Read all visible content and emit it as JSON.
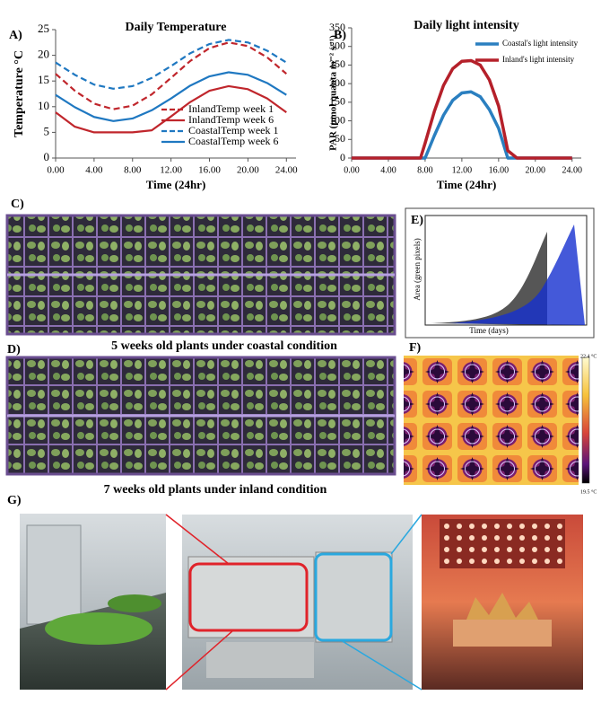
{
  "chart_data": [
    {
      "type": "line",
      "panel": "A)",
      "title": "Daily Temperature",
      "x_label": "Time (24hr)",
      "y_label": "Temperature °C",
      "x": [
        0,
        2,
        4,
        6,
        8,
        10,
        12,
        14,
        16,
        18,
        20,
        22,
        24
      ],
      "series": [
        {
          "name": "InlandTemp week 1",
          "color": "#c0262c",
          "line_style": "dashed",
          "values": [
            16.4,
            13.1,
            10.6,
            9.5,
            10.2,
            12.4,
            15.6,
            18.9,
            21.4,
            22.5,
            21.8,
            19.6,
            16.4
          ]
        },
        {
          "name": "InlandTemp week 6",
          "color": "#c0262c",
          "line_style": "solid",
          "values": [
            8.9,
            6.1,
            5,
            5,
            5,
            5.4,
            8.1,
            10.9,
            13.1,
            14,
            13.4,
            11.6,
            8.9
          ]
        },
        {
          "name": "CoastalTemp week 1",
          "color": "#1f78c1",
          "line_style": "dashed",
          "values": [
            18.6,
            16.2,
            14.3,
            13.5,
            14,
            15.6,
            17.9,
            20.4,
            22.2,
            23,
            22.5,
            20.9,
            18.6
          ]
        },
        {
          "name": "CoastalTemp week 6",
          "color": "#1f78c1",
          "line_style": "solid",
          "values": [
            12.3,
            9.9,
            8,
            7.2,
            7.7,
            9.3,
            11.6,
            14.1,
            15.9,
            16.7,
            16.2,
            14.6,
            12.3
          ]
        }
      ],
      "xlim": [
        0,
        25
      ],
      "ylim": [
        0,
        25
      ],
      "xticks": [
        {
          "value": 0,
          "label": "0.00"
        },
        {
          "value": 4,
          "label": "4.00"
        },
        {
          "value": 8,
          "label": "8.00"
        },
        {
          "value": 12,
          "label": "12.00"
        },
        {
          "value": 16,
          "label": "16.00"
        },
        {
          "value": 20,
          "label": "20.00"
        },
        {
          "value": 24,
          "label": "24.00"
        }
      ],
      "yticks": [
        0,
        5,
        10,
        15,
        20,
        25
      ],
      "legend": "lower right"
    },
    {
      "type": "line",
      "panel": "B)",
      "title": "Daily light intensity",
      "x_label": "Time (24hr)",
      "y_label": "PAR (μmol quanta m⁻² s⁻¹)",
      "x": [
        0,
        7.5,
        8,
        9,
        10,
        11,
        12,
        13,
        14,
        15,
        16,
        17,
        18,
        24
      ],
      "series": [
        {
          "name": "Coastal's light intensity",
          "color": "#2a7fc0",
          "line_style": "solid",
          "values": [
            0,
            0,
            0,
            60,
            115,
            155,
            175,
            178,
            165,
            130,
            80,
            0,
            0,
            0
          ]
        },
        {
          "name": "Inland's light intensity",
          "color": "#b5202a",
          "line_style": "solid",
          "values": [
            0,
            0,
            40,
            125,
            195,
            240,
            260,
            262,
            250,
            210,
            140,
            20,
            0,
            0
          ]
        }
      ],
      "xlim": [
        0,
        25
      ],
      "ylim": [
        0,
        350
      ],
      "xticks": [
        {
          "value": 0,
          "label": "0.00"
        },
        {
          "value": 4,
          "label": "4.00"
        },
        {
          "value": 8,
          "label": "8.00"
        },
        {
          "value": 12,
          "label": "12.00"
        },
        {
          "value": 16,
          "label": "16.00"
        },
        {
          "value": 20,
          "label": "20.00"
        },
        {
          "value": 24,
          "label": "24.00"
        }
      ],
      "yticks": [
        0,
        50,
        100,
        150,
        200,
        250,
        300,
        350
      ],
      "legend": "upper right"
    }
  ],
  "panels": {
    "C": {
      "label": "C)",
      "caption": "5 weeks old plants under coastal condition"
    },
    "D": {
      "label": "D)",
      "caption": "7 weeks old plants under inland condition"
    },
    "E": {
      "label": "E)",
      "y_label": "Area (green pixels)",
      "x_label": "Time (days)"
    },
    "F": {
      "label": "F)",
      "max_label": "22.4 °C",
      "min_label": "19.5 °C"
    },
    "G": {
      "label": "G)"
    }
  }
}
